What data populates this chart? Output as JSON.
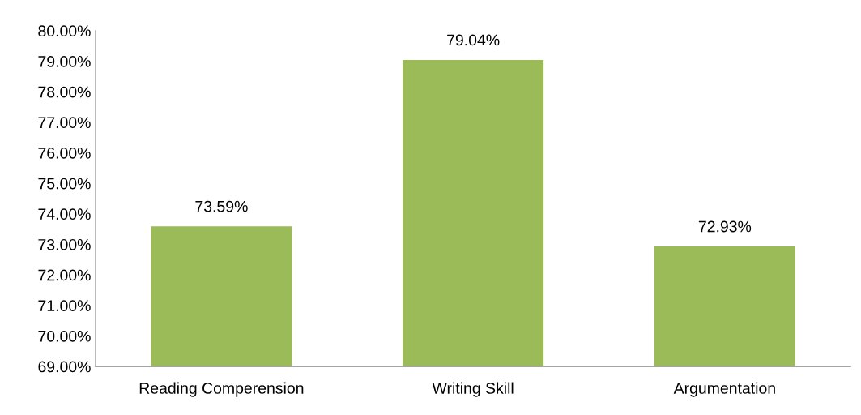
{
  "chart_data": {
    "type": "bar",
    "categories": [
      "Reading Comperension",
      "Writing Skill",
      "Argumentation"
    ],
    "values": [
      73.59,
      79.04,
      72.93
    ],
    "value_labels": [
      "73.59%",
      "79.04%",
      "72.93%"
    ],
    "color": "#9bbb59",
    "ylim": [
      69,
      80
    ],
    "yticks": [
      {
        "value": 69,
        "label": "69.00%"
      },
      {
        "value": 70,
        "label": "70.00%"
      },
      {
        "value": 71,
        "label": "71.00%"
      },
      {
        "value": 72,
        "label": "72.00%"
      },
      {
        "value": 73,
        "label": "73.00%"
      },
      {
        "value": 74,
        "label": "74.00%"
      },
      {
        "value": 75,
        "label": "75.00%"
      },
      {
        "value": 76,
        "label": "76.00%"
      },
      {
        "value": 77,
        "label": "77.00%"
      },
      {
        "value": 78,
        "label": "78.00%"
      },
      {
        "value": 79,
        "label": "79.00%"
      },
      {
        "value": 80,
        "label": "80.00%"
      }
    ],
    "grid": false,
    "legend": false
  }
}
